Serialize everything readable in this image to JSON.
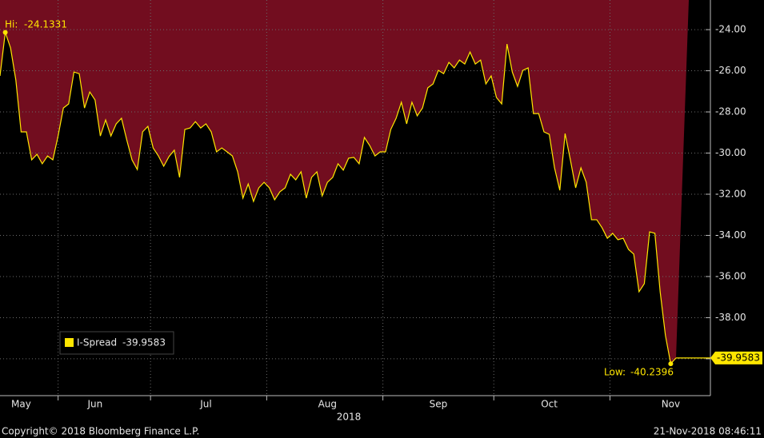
{
  "chart_data": {
    "type": "area-line",
    "series": [
      {
        "name": "I-Spread",
        "color": "#ffe600",
        "fill": "#720d1f",
        "values": [
          -26.25,
          -24.1331,
          -24.89,
          -26.45,
          -28.97,
          -28.97,
          -30.33,
          -30.06,
          -30.52,
          -30.14,
          -30.33,
          -29.17,
          -27.81,
          -27.61,
          -26.06,
          -26.14,
          -27.81,
          -27.03,
          -27.42,
          -29.17,
          -28.39,
          -29.17,
          -28.58,
          -28.31,
          -29.36,
          -30.33,
          -30.8,
          -28.97,
          -28.7,
          -29.75,
          -30.14,
          -30.64,
          -30.17,
          -29.86,
          -31.18,
          -28.85,
          -28.78,
          -28.47,
          -28.78,
          -28.58,
          -28.97,
          -29.94,
          -29.75,
          -29.94,
          -30.14,
          -30.91,
          -32.19,
          -31.5,
          -32.35,
          -31.69,
          -31.42,
          -31.69,
          -32.27,
          -31.88,
          -31.69,
          -31.03,
          -31.3,
          -30.91,
          -32.19,
          -31.18,
          -30.91,
          -32.08,
          -31.42,
          -31.18,
          -30.52,
          -30.83,
          -30.25,
          -30.21,
          -30.52,
          -29.24,
          -29.63,
          -30.14,
          -29.94,
          -29.94,
          -28.85,
          -28.31,
          -27.53,
          -28.58,
          -27.53,
          -28.19,
          -27.81,
          -26.83,
          -26.64,
          -25.98,
          -26.14,
          -25.59,
          -25.86,
          -25.48,
          -25.67,
          -25.09,
          -25.67,
          -25.48,
          -26.64,
          -26.25,
          -27.3,
          -27.61,
          -24.7,
          -26.06,
          -26.76,
          -25.98,
          -25.86,
          -28.08,
          -28.08,
          -28.97,
          -29.09,
          -30.72,
          -31.81,
          -29.05,
          -30.33,
          -31.69,
          -30.72,
          -31.42,
          -33.24,
          -33.24,
          -33.63,
          -34.14,
          -33.9,
          -34.21,
          -34.14,
          -34.68,
          -34.91,
          -36.74,
          -36.35,
          -33.83,
          -33.9,
          -36.74,
          -38.87,
          -40.2396,
          -39.9583
        ]
      }
    ],
    "categories": [
      null,
      null,
      null,
      null,
      "May",
      null,
      null,
      null,
      null,
      null,
      null,
      null,
      null,
      null,
      null,
      null,
      null,
      null,
      "Jun",
      null,
      null,
      null,
      null,
      null,
      null,
      null,
      null,
      null,
      null,
      null,
      null,
      null,
      null,
      null,
      null,
      null,
      null,
      null,
      null,
      "Jul",
      null,
      null,
      null,
      null,
      null,
      null,
      null,
      null,
      null,
      null,
      null,
      null,
      null,
      null,
      null,
      null,
      null,
      null,
      null,
      null,
      null,
      null,
      "Aug",
      null,
      null,
      null,
      null,
      null,
      null,
      null,
      null,
      null,
      null,
      null,
      null,
      null,
      null,
      null,
      null,
      null,
      null,
      null,
      null,
      "Sep",
      null,
      null,
      null,
      null,
      null,
      null,
      null,
      null,
      null,
      null,
      null,
      null,
      null,
      null,
      null,
      null,
      null,
      null,
      null,
      null,
      "Oct",
      null,
      null,
      null,
      null,
      null,
      null,
      null,
      null,
      null,
      null,
      null,
      null,
      null,
      null,
      null,
      null,
      null,
      null,
      null,
      null,
      null,
      null,
      "Nov",
      null
    ],
    "xlabel": "2018",
    "hi_label": "Hi:",
    "low_label": "Low:",
    "ylim": [
      -41.79,
      -22.56
    ],
    "yticks": [
      {
        "value": -24,
        "label": "-24.00"
      },
      {
        "value": -26,
        "label": "-26.00"
      },
      {
        "value": -28,
        "label": "-28.00"
      },
      {
        "value": -30,
        "label": "-30.00"
      },
      {
        "value": -32,
        "label": "-32.00"
      },
      {
        "value": -34,
        "label": "-34.00"
      },
      {
        "value": -36,
        "label": "-36.00"
      },
      {
        "value": -38,
        "label": "-38.00"
      },
      {
        "value": -40,
        "label": "-40.00"
      }
    ],
    "grid": true
  },
  "footer": {
    "left": "Copyright© 2018 Bloomberg Finance L.P.",
    "right": "21-Nov-2018 08:46:11"
  }
}
